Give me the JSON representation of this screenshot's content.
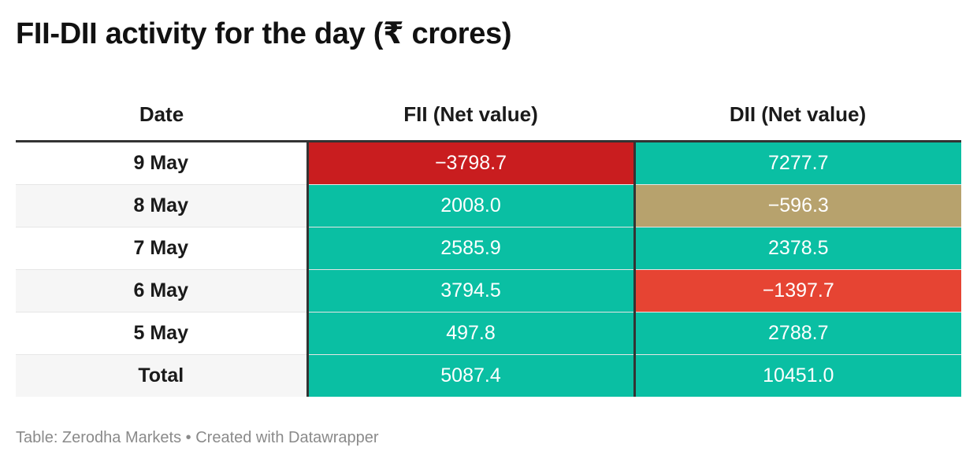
{
  "title": "FII-DII activity for the day (₹ crores)",
  "source_text": "Table: Zerodha Markets • Created with Datawrapper",
  "colors": {
    "positive": "#0abf a3",
    "fii_negative_large": "#c91d1f",
    "dii_negative_medium": "#e64433",
    "dii_negative_small": "#b7a26d"
  },
  "chart_data": {
    "type": "table",
    "title": "FII-DII activity for the day (₹ crores)",
    "columns": [
      "Date",
      "FII (Net value)",
      "DII (Net value)"
    ],
    "rows": [
      {
        "date": "9 May",
        "fii": "−3798.7",
        "dii": "7277.7",
        "fii_color": "#c91d1f",
        "dii_color": "#0abfa3"
      },
      {
        "date": "8 May",
        "fii": "2008.0",
        "dii": "−596.3",
        "fii_color": "#0abfa3",
        "dii_color": "#b7a26d"
      },
      {
        "date": "7 May",
        "fii": "2585.9",
        "dii": "2378.5",
        "fii_color": "#0abfa3",
        "dii_color": "#0abfa3"
      },
      {
        "date": "6 May",
        "fii": "3794.5",
        "dii": "−1397.7",
        "fii_color": "#0abfa3",
        "dii_color": "#e64433"
      },
      {
        "date": "5 May",
        "fii": "497.8",
        "dii": "2788.7",
        "fii_color": "#0abfa3",
        "dii_color": "#0abfa3"
      },
      {
        "date": "Total",
        "fii": "5087.4",
        "dii": "10451.0",
        "fii_color": "#0abfa3",
        "dii_color": "#0abfa3"
      }
    ]
  }
}
